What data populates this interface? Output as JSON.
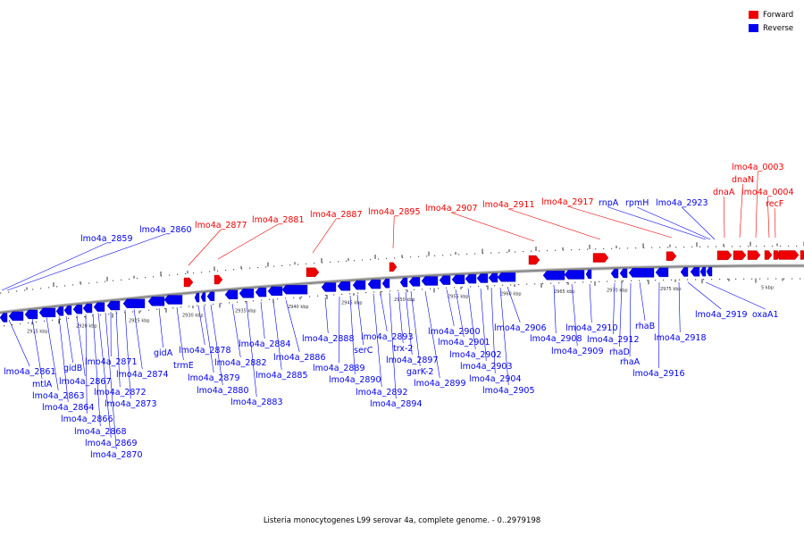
{
  "caption": "Listeria monocytogenes L99 serovar 4a, complete genome. - 0..2979198",
  "legend": {
    "forward_label": "Forward",
    "reverse_label": "Reverse",
    "forward_color": "#ee0000",
    "reverse_color": "#0000ee"
  },
  "colors": {
    "forward": "#ee0000",
    "reverse": "#0000ee",
    "backbone": "#888888"
  },
  "scale_labels": [
    "2915 kbp",
    "2920 kbp",
    "2925 kbp",
    "2930 kbp",
    "2935 kbp",
    "2940 kbp",
    "2945 kbp",
    "2950 kbp",
    "2955 kbp",
    "2960 kbp",
    "2965 kbp",
    "2970 kbp",
    "2975 kbp",
    "5 kbp"
  ],
  "forward_genes": [
    "lmo4a_2877",
    "lmo4a_2881",
    "lmo4a_2887",
    "lmo4a_2895",
    "lmo4a_2907",
    "lmo4a_2911",
    "lmo4a_2917",
    "dnaA",
    "dnaN",
    "lmo4a_0003",
    "lmo4a_0004",
    "recF"
  ],
  "reverse_labels": [
    "lmo4a_2859",
    "lmo4a_2860",
    "rnpA",
    "rpmH",
    "lmo4a_2923",
    "lmo4a_2861",
    "mtlA",
    "lmo4a_2863",
    "lmo4a_2864",
    "gidB",
    "lmo4a_2867",
    "lmo4a_2866",
    "lmo4a_2868",
    "lmo4a_2869",
    "lmo4a_2870",
    "lmo4a_2871",
    "lmo4a_2872",
    "lmo4a_2873",
    "lmo4a_2874",
    "gidA",
    "trmE",
    "lmo4a_2878",
    "lmo4a_2879",
    "lmo4a_2880",
    "lmo4a_2882",
    "lmo4a_2883",
    "lmo4a_2884",
    "lmo4a_2885",
    "lmo4a_2886",
    "lmo4a_2888",
    "lmo4a_2889",
    "lmo4a_2890",
    "serC",
    "lmo4a_2892",
    "lmo4a_2893",
    "lmo4a_2894",
    "trx-2",
    "lmo4a_2897",
    "garK-2",
    "lmo4a_2899",
    "lmo4a_2900",
    "lmo4a_2901",
    "lmo4a_2902",
    "lmo4a_2903",
    "lmo4a_2904",
    "lmo4a_2905",
    "lmo4a_2906",
    "lmo4a_2908",
    "lmo4a_2909",
    "lmo4a_2910",
    "lmo4a_2912",
    "rhaD",
    "rhaA",
    "rhaB",
    "lmo4a_2916",
    "lmo4a_2918",
    "lmo4a_2919",
    "oxaA1"
  ]
}
